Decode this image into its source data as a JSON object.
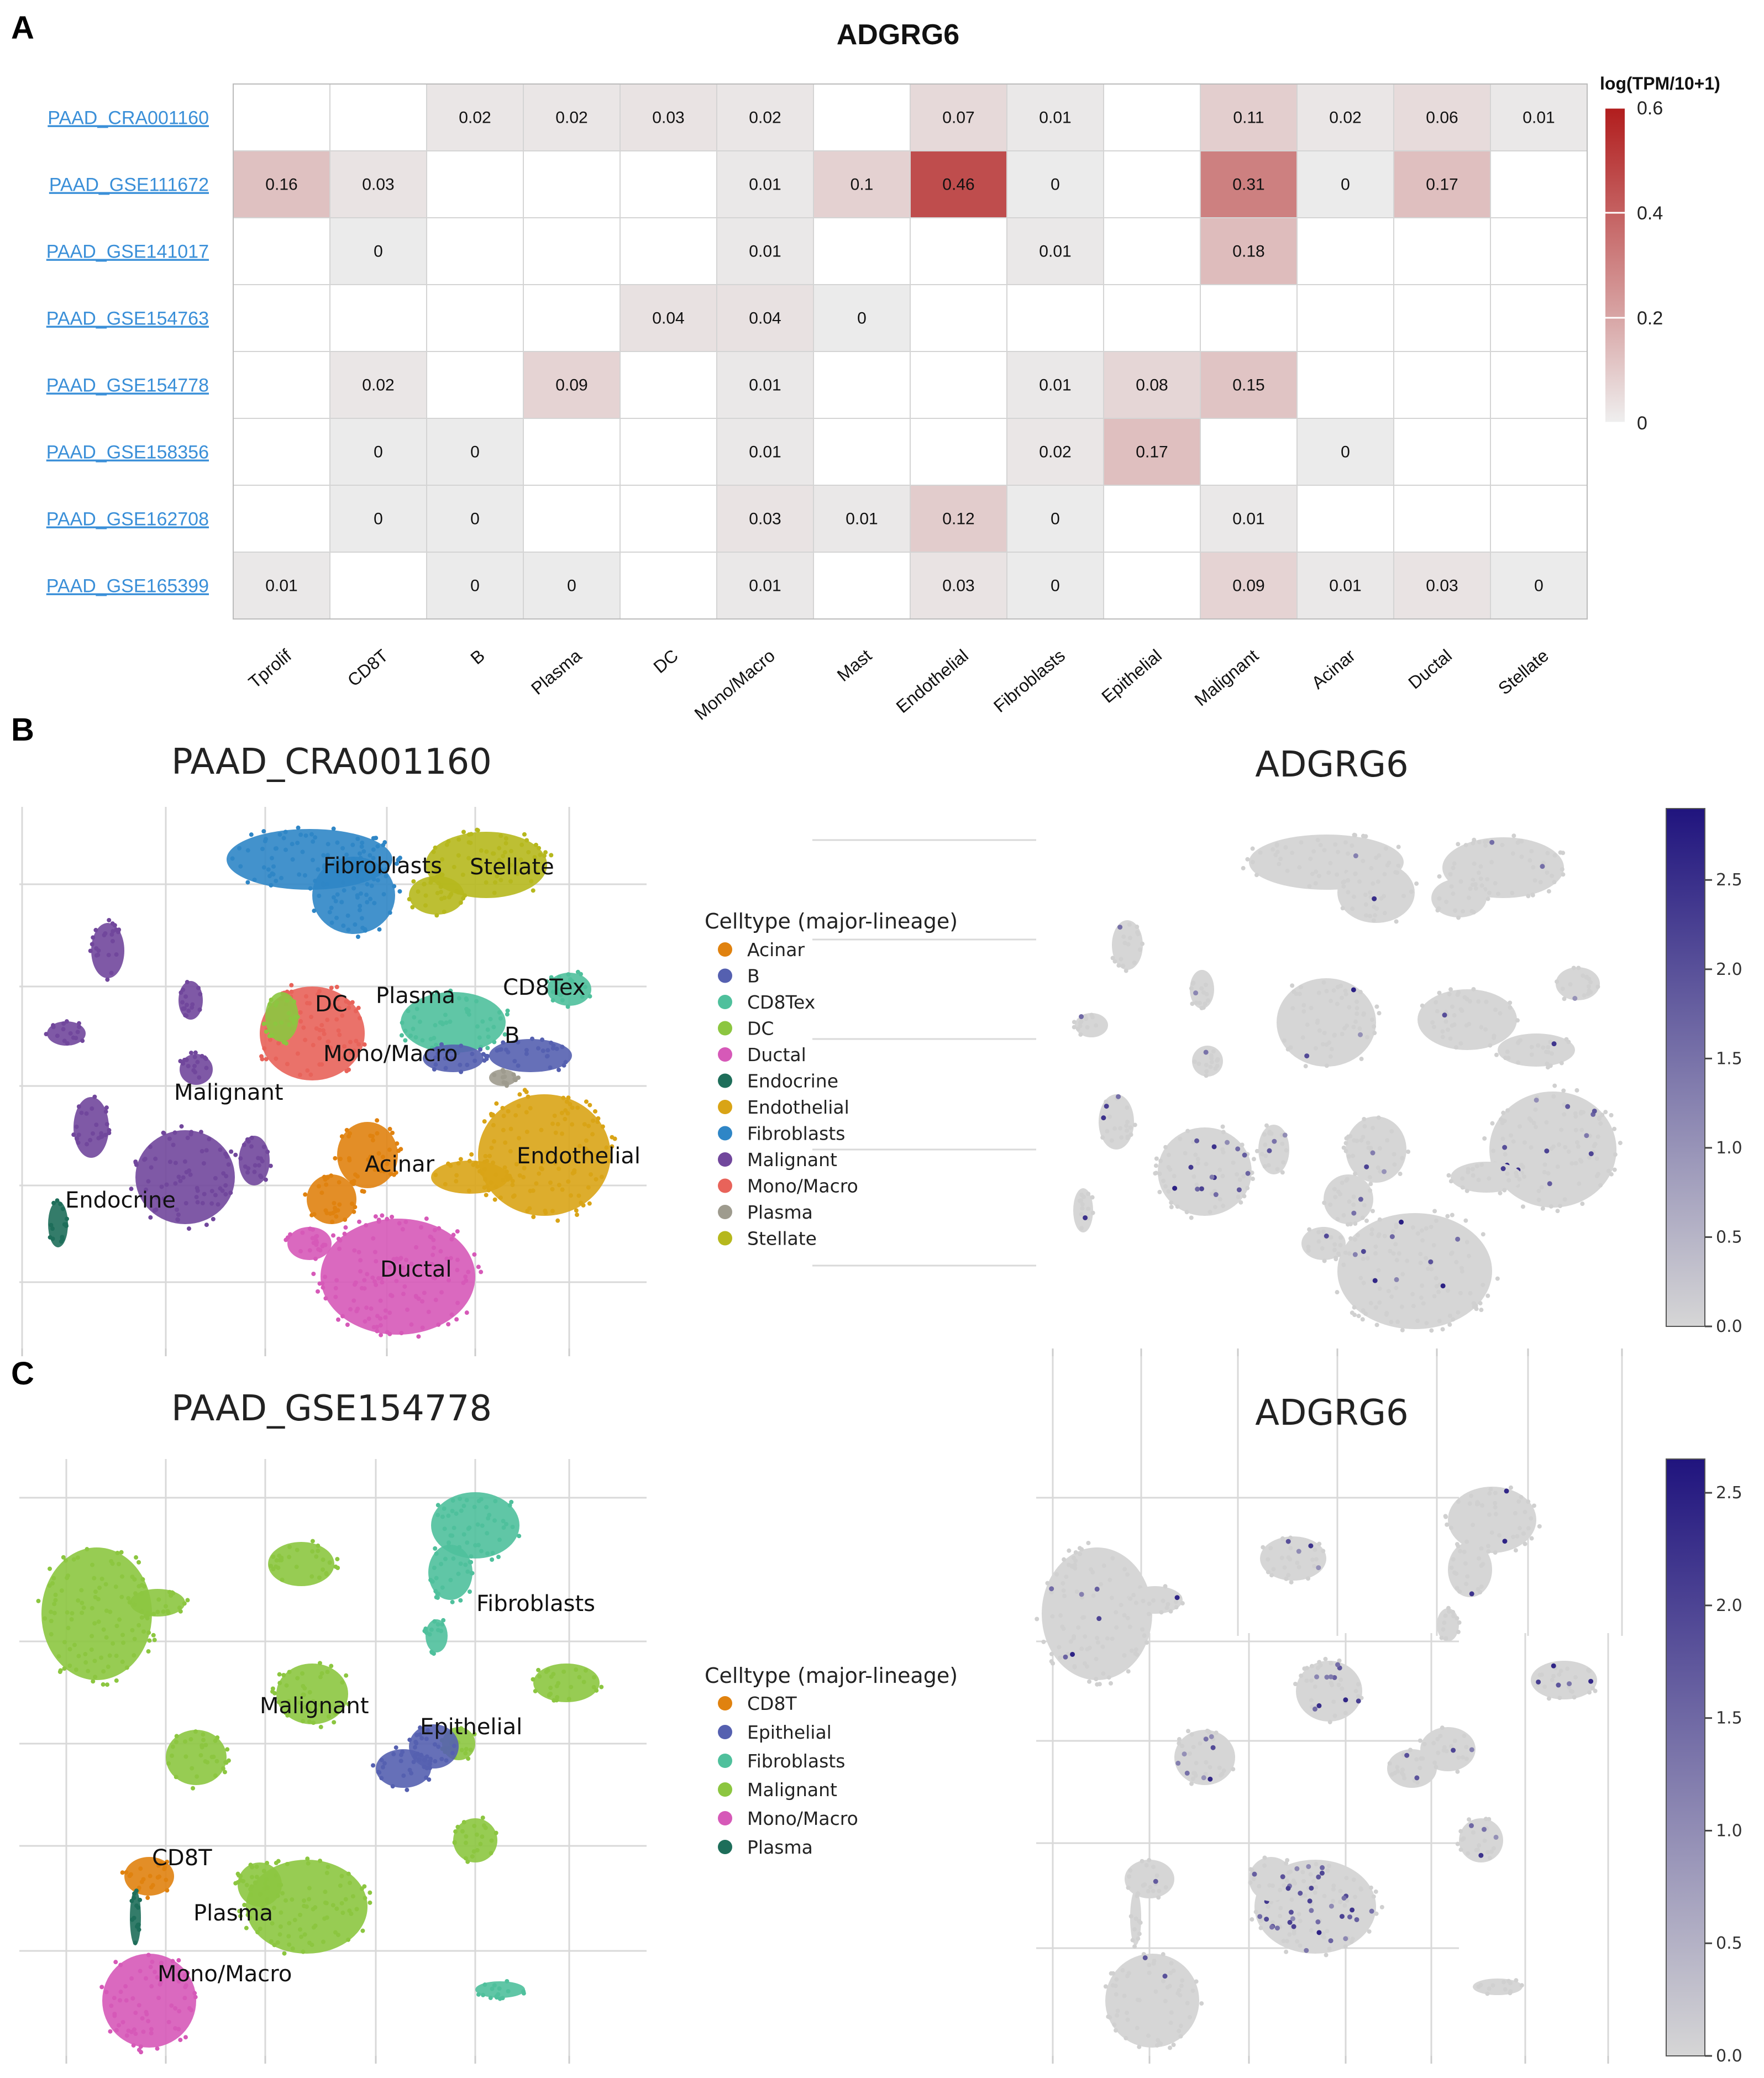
{
  "panels": {
    "A": {
      "label": "A",
      "title": "ADGRG6"
    },
    "B": {
      "label": "B",
      "left_title": "PAAD_CRA001160",
      "right_title": "ADGRG6"
    },
    "C": {
      "label": "C",
      "left_title": "PAAD_GSE154778",
      "right_title": "ADGRG6"
    }
  },
  "chart_data": [
    {
      "type": "heatmap",
      "title": "ADGRG6",
      "colorbar_title": "log(TPM/10+1)",
      "colorbar_ticks": [
        "0",
        "0.2",
        "0.4",
        "0.6"
      ],
      "color_range": [
        0,
        0.6
      ],
      "colors": {
        "low": "#efefef",
        "mid": "#d8a6a6",
        "high": "#b11d1d"
      },
      "rows": [
        "PAAD_CRA001160",
        "PAAD_GSE111672",
        "PAAD_GSE141017",
        "PAAD_GSE154763",
        "PAAD_GSE154778",
        "PAAD_GSE158356",
        "PAAD_GSE162708",
        "PAAD_GSE165399"
      ],
      "columns": [
        "Tprolif",
        "CD8T",
        "B",
        "Plasma",
        "DC",
        "Mono/Macro",
        "Mast",
        "Endothelial",
        "Fibroblasts",
        "Epithelial",
        "Malignant",
        "Acinar",
        "Ductal",
        "Stellate"
      ],
      "values": [
        [
          null,
          null,
          "0.02",
          "0.02",
          "0.03",
          "0.02",
          null,
          "0.07",
          "0.01",
          null,
          "0.11",
          "0.02",
          "0.06",
          "0.01"
        ],
        [
          "0.16",
          "0.03",
          null,
          null,
          null,
          "0.01",
          "0.1",
          "0.46",
          "0",
          null,
          "0.31",
          "0",
          "0.17",
          null
        ],
        [
          null,
          "0",
          null,
          null,
          null,
          "0.01",
          null,
          null,
          "0.01",
          null,
          "0.18",
          null,
          null,
          null
        ],
        [
          null,
          null,
          null,
          null,
          "0.04",
          "0.04",
          "0",
          null,
          null,
          null,
          null,
          null,
          null,
          null
        ],
        [
          null,
          "0.02",
          null,
          "0.09",
          null,
          "0.01",
          null,
          null,
          "0.01",
          "0.08",
          "0.15",
          null,
          null,
          null
        ],
        [
          null,
          "0",
          "0",
          null,
          null,
          "0.01",
          null,
          null,
          "0.02",
          "0.17",
          null,
          "0",
          null,
          null
        ],
        [
          null,
          "0",
          "0",
          null,
          null,
          "0.03",
          "0.01",
          "0.12",
          "0",
          null,
          "0.01",
          null,
          null,
          null
        ],
        [
          "0.01",
          null,
          "0",
          "0",
          null,
          "0.01",
          null,
          "0.03",
          "0",
          null,
          "0.09",
          "0.01",
          "0.03",
          "0"
        ]
      ]
    },
    {
      "type": "scatter",
      "title": "PAAD_CRA001160",
      "legend_title": "Celltype (major-lineage)",
      "legend": [
        {
          "name": "Acinar",
          "color": "#e0820f"
        },
        {
          "name": "B",
          "color": "#5560b0"
        },
        {
          "name": "CD8Tex",
          "color": "#4fc09c"
        },
        {
          "name": "DC",
          "color": "#8cc640"
        },
        {
          "name": "Ductal",
          "color": "#d659b8"
        },
        {
          "name": "Endocrine",
          "color": "#1e6e5a"
        },
        {
          "name": "Endothelial",
          "color": "#d9a416"
        },
        {
          "name": "Fibroblasts",
          "color": "#2f86c6"
        },
        {
          "name": "Malignant",
          "color": "#71479c"
        },
        {
          "name": "Mono/Macro",
          "color": "#e8635a"
        },
        {
          "name": "Plasma",
          "color": "#9e9b8e"
        },
        {
          "name": "Stellate",
          "color": "#b6b81d"
        }
      ],
      "cluster_labels": [
        "Fibroblasts",
        "Stellate",
        "DC",
        "Plasma",
        "CD8Tex",
        "B",
        "Mono/Macro",
        "Malignant",
        "Acinar",
        "Endothelial",
        "Endocrine",
        "Ductal"
      ]
    },
    {
      "type": "scatter",
      "title": "ADGRG6",
      "colorbar_ticks": [
        "0.0",
        "0.5",
        "1.0",
        "1.5",
        "2.0",
        "2.5"
      ],
      "color_range": [
        0,
        2.9
      ],
      "colors": {
        "low": "#d6d6d6",
        "high": "#20147e"
      }
    },
    {
      "type": "scatter",
      "title": "PAAD_GSE154778",
      "legend_title": "Celltype (major-lineage)",
      "legend": [
        {
          "name": "CD8T",
          "color": "#e0820f"
        },
        {
          "name": "Epithelial",
          "color": "#5560b0"
        },
        {
          "name": "Fibroblasts",
          "color": "#4fc09c"
        },
        {
          "name": "Malignant",
          "color": "#8cc640"
        },
        {
          "name": "Mono/Macro",
          "color": "#d659b8"
        },
        {
          "name": "Plasma",
          "color": "#1e6e5a"
        }
      ],
      "cluster_labels": [
        "Fibroblasts",
        "Malignant",
        "Epithelial",
        "CD8T",
        "Plasma",
        "Mono/Macro"
      ]
    },
    {
      "type": "scatter",
      "title": "ADGRG6",
      "colorbar_ticks": [
        "0.0",
        "0.5",
        "1.0",
        "1.5",
        "2.0",
        "2.5"
      ],
      "color_range": [
        0,
        2.65
      ],
      "colors": {
        "low": "#d6d6d6",
        "high": "#20147e"
      }
    }
  ]
}
